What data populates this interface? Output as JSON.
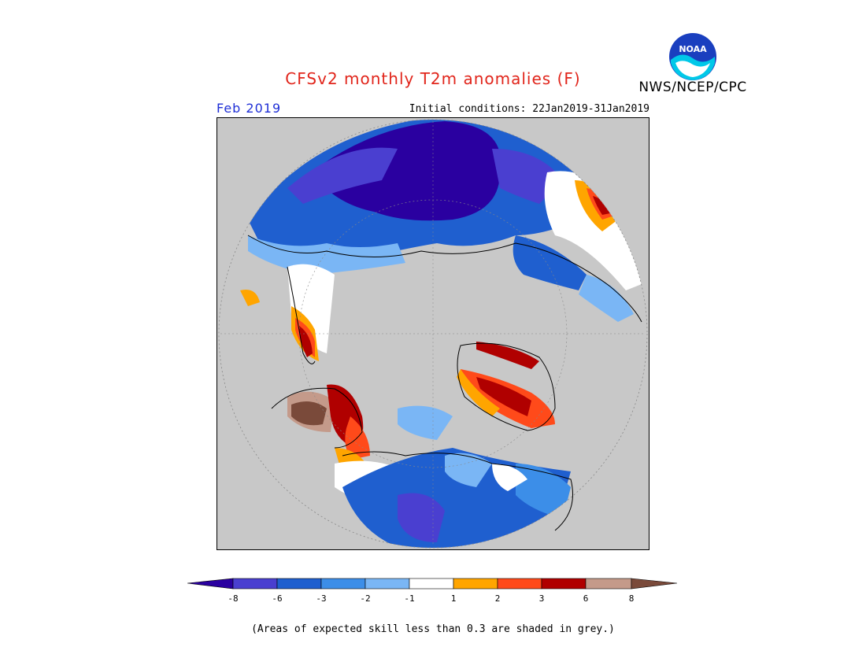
{
  "header": {
    "title": "CFSv2 monthly T2m anomalies (F)",
    "agency": "NWS/NCEP/CPC",
    "logo_text": "NOAA",
    "month": "Feb 2019",
    "initial_conditions": "Initial conditions: 22Jan2019-31Jan2019"
  },
  "map": {
    "projection": "north polar stereographic",
    "ocean_color": "#c8c8c8",
    "skill_mask_color": "#c8c8c8"
  },
  "legend": {
    "ticks": [
      "-8",
      "-6",
      "-3",
      "-2",
      "-1",
      "1",
      "2",
      "3",
      "6",
      "8"
    ],
    "colors": {
      "lt_-8": "#2a00a0",
      "-8_-6": "#4a3fd0",
      "-6_-3": "#1f5fcf",
      "-3_-2": "#3c8ee8",
      "-2_-1": "#7ab6f5",
      "-1_1": "#ffffff",
      "1_2": "#ffa500",
      "2_3": "#ff4a1a",
      "3_6": "#b00000",
      "6_8": "#c49a8a",
      "gt_8": "#7a4a3a"
    }
  },
  "footnote": "(Areas of expected skill less than 0.3 are shaded in grey.)"
}
